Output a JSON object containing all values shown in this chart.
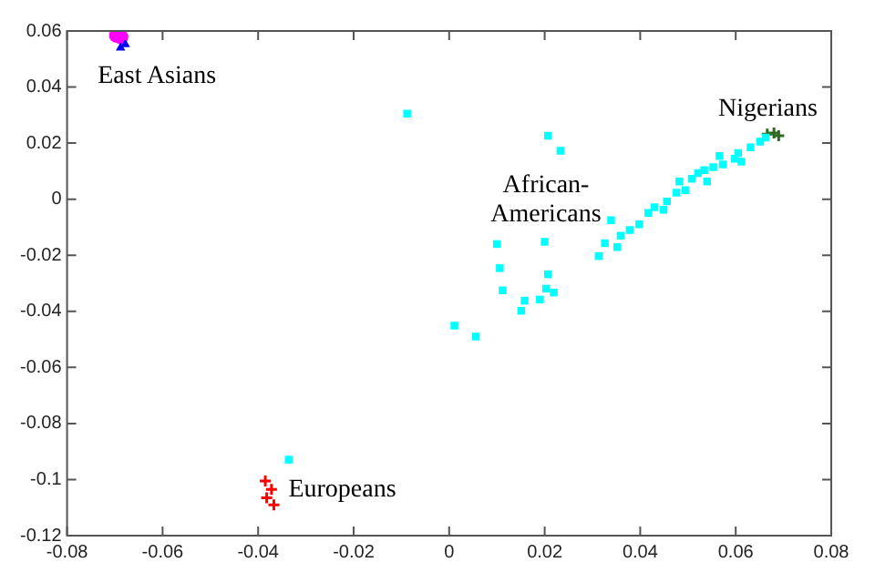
{
  "chart_data": {
    "type": "scatter",
    "xlim": [
      -0.08,
      0.08
    ],
    "xticks": [
      -0.08,
      -0.06,
      -0.04,
      -0.02,
      0,
      0.02,
      0.04,
      0.06,
      0.08
    ],
    "ylim": [
      -0.12,
      0.06
    ],
    "yticks": [
      -0.12,
      -0.1,
      -0.08,
      -0.06,
      -0.04,
      -0.02,
      0,
      0.02,
      0.04,
      0.06
    ],
    "grid": false,
    "legend": false,
    "series": [
      {
        "name": "African-\nAmericans",
        "color": "#00ffff",
        "marker": "square",
        "x": [
          -0.0088,
          0.0207,
          0.0233,
          0.0339,
          0.01,
          0.02,
          0.0106,
          0.0207,
          0.0313,
          0.0112,
          0.0203,
          0.0219,
          0.0011,
          0.0056,
          0.0151,
          0.0158,
          0.019,
          -0.0336,
          0.0326,
          0.0352,
          0.0359,
          0.0378,
          0.0398,
          0.0417,
          0.043,
          0.0449,
          0.0456,
          0.0476,
          0.0482,
          0.0495,
          0.0508,
          0.0521,
          0.0534,
          0.054,
          0.0553,
          0.0566,
          0.0573,
          0.0598,
          0.0605,
          0.0612,
          0.0631,
          0.0651,
          0.0663
        ],
        "values": [
          0.0305,
          0.0226,
          0.0173,
          -0.0075,
          -0.016,
          -0.0152,
          -0.0246,
          -0.0268,
          -0.0203,
          -0.0325,
          -0.0319,
          -0.0333,
          -0.0451,
          -0.049,
          -0.0398,
          -0.0362,
          -0.0358,
          -0.0929,
          -0.0157,
          -0.0171,
          -0.013,
          -0.011,
          -0.009,
          -0.0049,
          -0.0029,
          -0.0038,
          -0.0008,
          0.0023,
          0.0063,
          0.0032,
          0.0073,
          0.0093,
          0.0104,
          0.0063,
          0.0114,
          0.0154,
          0.0124,
          0.0144,
          0.0165,
          0.0134,
          0.0185,
          0.0205,
          0.022
        ]
      },
      {
        "name": "Nigerians",
        "color": "#2e6b1e",
        "marker": "cross",
        "x": [
          0.0666,
          0.068,
          0.069
        ],
        "values": [
          0.0232,
          0.0236,
          0.0226
        ]
      },
      {
        "name": "Europeans",
        "color": "#ff0000",
        "marker": "cross",
        "x": [
          -0.0385,
          -0.0372,
          -0.0382,
          -0.0367
        ],
        "values": [
          -0.1005,
          -0.1035,
          -0.1065,
          -0.109
        ]
      },
      {
        "color": "#0000ff",
        "marker": "triangle",
        "x": [
          -0.0688,
          -0.0678
        ],
        "values": [
          0.054,
          0.0552
        ]
      },
      {
        "name": "East Asians",
        "color": "#ff00ff",
        "marker": "circle",
        "x": [
          -0.0697,
          -0.0687
        ],
        "values": [
          0.0584,
          0.0578
        ]
      }
    ]
  }
}
